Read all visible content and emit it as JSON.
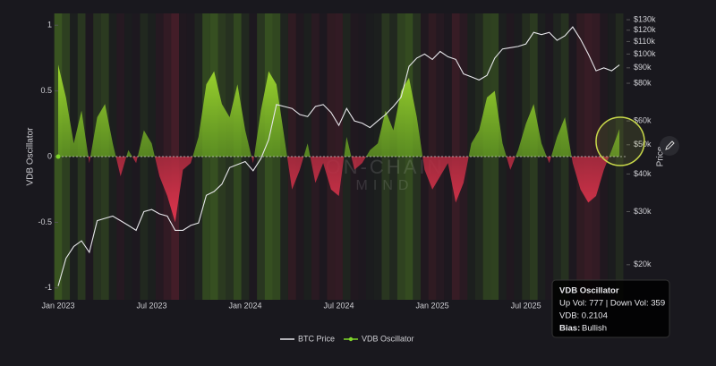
{
  "chart_data": {
    "type": "line",
    "y_label": "VDB Oscillator",
    "y2_label": "Price",
    "watermark": [
      "ON-CHAIN",
      "MIND"
    ],
    "categories": [
      "Jan 2023",
      null,
      null,
      null,
      null,
      null,
      null,
      null,
      null,
      null,
      null,
      null,
      "Jul 2023",
      null,
      null,
      null,
      null,
      null,
      null,
      null,
      null,
      null,
      null,
      null,
      "Jan 2024",
      null,
      null,
      null,
      null,
      null,
      null,
      null,
      null,
      null,
      null,
      null,
      "Jul 2024",
      null,
      null,
      null,
      null,
      null,
      null,
      null,
      null,
      null,
      null,
      null,
      "Jan 2025",
      null,
      null,
      null,
      null,
      null,
      null,
      null,
      null,
      null,
      null,
      null,
      "Jul 2025",
      null,
      null,
      null,
      null,
      null,
      null,
      null,
      null,
      null,
      null,
      null,
      null
    ],
    "series": [
      {
        "name": "BTC Price",
        "color": "#e6e6ea",
        "axis": "y2",
        "values": [
          17000,
          21000,
          23000,
          24000,
          22000,
          28000,
          28500,
          29000,
          28000,
          27000,
          26000,
          30000,
          30500,
          29500,
          29000,
          26000,
          26000,
          27000,
          27500,
          34000,
          35000,
          37000,
          42000,
          43000,
          44000,
          41000,
          45000,
          52000,
          68000,
          67000,
          66000,
          63000,
          62000,
          67000,
          68000,
          64000,
          58000,
          66000,
          60000,
          59000,
          57000,
          60000,
          63000,
          67000,
          72000,
          91000,
          97000,
          100000,
          96000,
          102000,
          98000,
          96000,
          86000,
          84000,
          82000,
          85000,
          97000,
          104000,
          105000,
          106000,
          108000,
          118000,
          116000,
          118000,
          111000,
          115000,
          123000,
          112000,
          100000,
          88000,
          90000,
          88000,
          92000
        ]
      },
      {
        "name": "VDB Oscillator",
        "color": "#7fd62a",
        "negative_color": "#d8324a",
        "values": [
          0.7,
          0.45,
          0.1,
          0.35,
          -0.05,
          0.3,
          0.4,
          0.1,
          -0.15,
          0.05,
          -0.05,
          0.2,
          0.1,
          -0.15,
          -0.3,
          -0.5,
          -0.1,
          -0.05,
          0.15,
          0.55,
          0.65,
          0.4,
          0.3,
          0.55,
          0.2,
          -0.05,
          0.35,
          0.65,
          0.55,
          0.15,
          -0.25,
          -0.1,
          0.1,
          -0.2,
          -0.05,
          -0.25,
          -0.3,
          0.15,
          -0.1,
          -0.05,
          0.05,
          0.1,
          0.35,
          0.2,
          0.5,
          0.6,
          0.3,
          -0.1,
          -0.25,
          -0.15,
          -0.05,
          -0.35,
          -0.2,
          0.1,
          0.2,
          0.45,
          0.5,
          0.1,
          -0.1,
          0.05,
          0.25,
          0.4,
          0.1,
          -0.05,
          0.15,
          0.3,
          -0.05,
          -0.25,
          -0.35,
          -0.3,
          -0.1,
          0.05,
          0.2104
        ]
      }
    ],
    "ylim": [
      -1.09,
      1.09
    ],
    "yticks": [
      1,
      0.5,
      0,
      -0.5,
      -1
    ],
    "y2lim": [
      15300,
      136400
    ],
    "y2_log": true,
    "y2ticks": [
      {
        "value": 130000,
        "label": "$130k"
      },
      {
        "value": 120000,
        "label": "$120k"
      },
      {
        "value": 110000,
        "label": "$110k"
      },
      {
        "value": 100000,
        "label": "$100k"
      },
      {
        "value": 90000,
        "label": "$90k"
      },
      {
        "value": 80000,
        "label": "$80k"
      },
      {
        "value": 60000,
        "label": "$60k"
      },
      {
        "value": 50000,
        "label": "$50k"
      },
      {
        "value": 40000,
        "label": "$40k"
      },
      {
        "value": 30000,
        "label": "$30k"
      },
      {
        "value": 20000,
        "label": "$20k"
      }
    ],
    "legend": "bottom",
    "tooltip": {
      "title": "VDB Oscillator",
      "line1": "Up Vol: 777 | Down Vol: 359",
      "line2": "VDB: 0.2104",
      "bias_label": "Bias:",
      "bias": "Bullish"
    }
  }
}
